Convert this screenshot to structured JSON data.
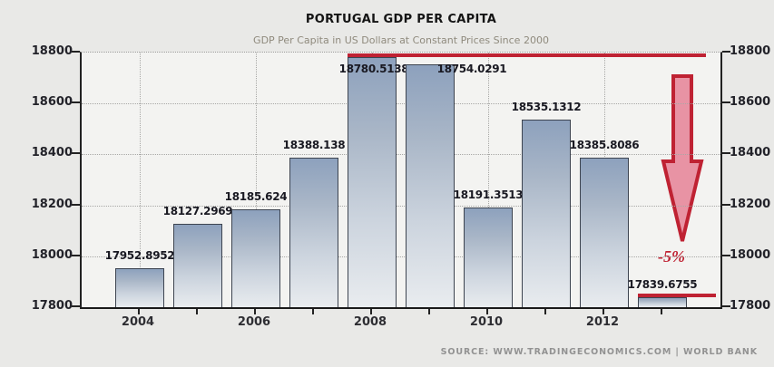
{
  "title": "PORTUGAL GDP PER CAPITA",
  "subtitle": "GDP Per Capita in US Dollars at Constant Prices Since 2000",
  "source": "SOURCE: WWW.TRADINGECONOMICS.COM | WORLD BANK",
  "annotation": {
    "label": "-5%"
  },
  "colors": {
    "background": "#e9e9e7",
    "plot_background": "#f3f3f1",
    "accent_red": "#bf2233",
    "arrow_fill": "#e893a4",
    "bar_gradient_top": "#8da1bd",
    "bar_gradient_bottom": "#e9ecef"
  },
  "chart_data": {
    "type": "bar",
    "title": "PORTUGAL GDP PER CAPITA",
    "subtitle": "GDP Per Capita in US Dollars at Constant Prices Since 2000",
    "categories": [
      "2004",
      "2005",
      "2006",
      "2007",
      "2008",
      "2009",
      "2010",
      "2011",
      "2012",
      "2013"
    ],
    "values": [
      17952.8952,
      18127.2969,
      18185.624,
      18388.138,
      18780.5138,
      18754.0291,
      18191.3513,
      18535.1312,
      18385.8086,
      17839.6755
    ],
    "bar_labels": [
      "17952.8952",
      "18127.2969",
      "18185.624",
      "18388.138",
      "18780.5138",
      "18754.0291",
      "18191.3513",
      "18535.1312",
      "18385.8086",
      "17839.6755"
    ],
    "x_tick_labels": [
      "2004",
      "2006",
      "2008",
      "2010",
      "2012"
    ],
    "y_ticks": [
      17800,
      18000,
      18200,
      18400,
      18600,
      18800
    ],
    "ylim": [
      17800,
      18800
    ],
    "grid": true,
    "legend": false,
    "annotations": {
      "peak_reference_line_value": 18780.5138,
      "current_level_line_value": 17839.6755,
      "arrow_direction": "down",
      "decline_label": "-5%"
    },
    "source": "SOURCE: WWW.TRADINGECONOMICS.COM | WORLD BANK"
  }
}
